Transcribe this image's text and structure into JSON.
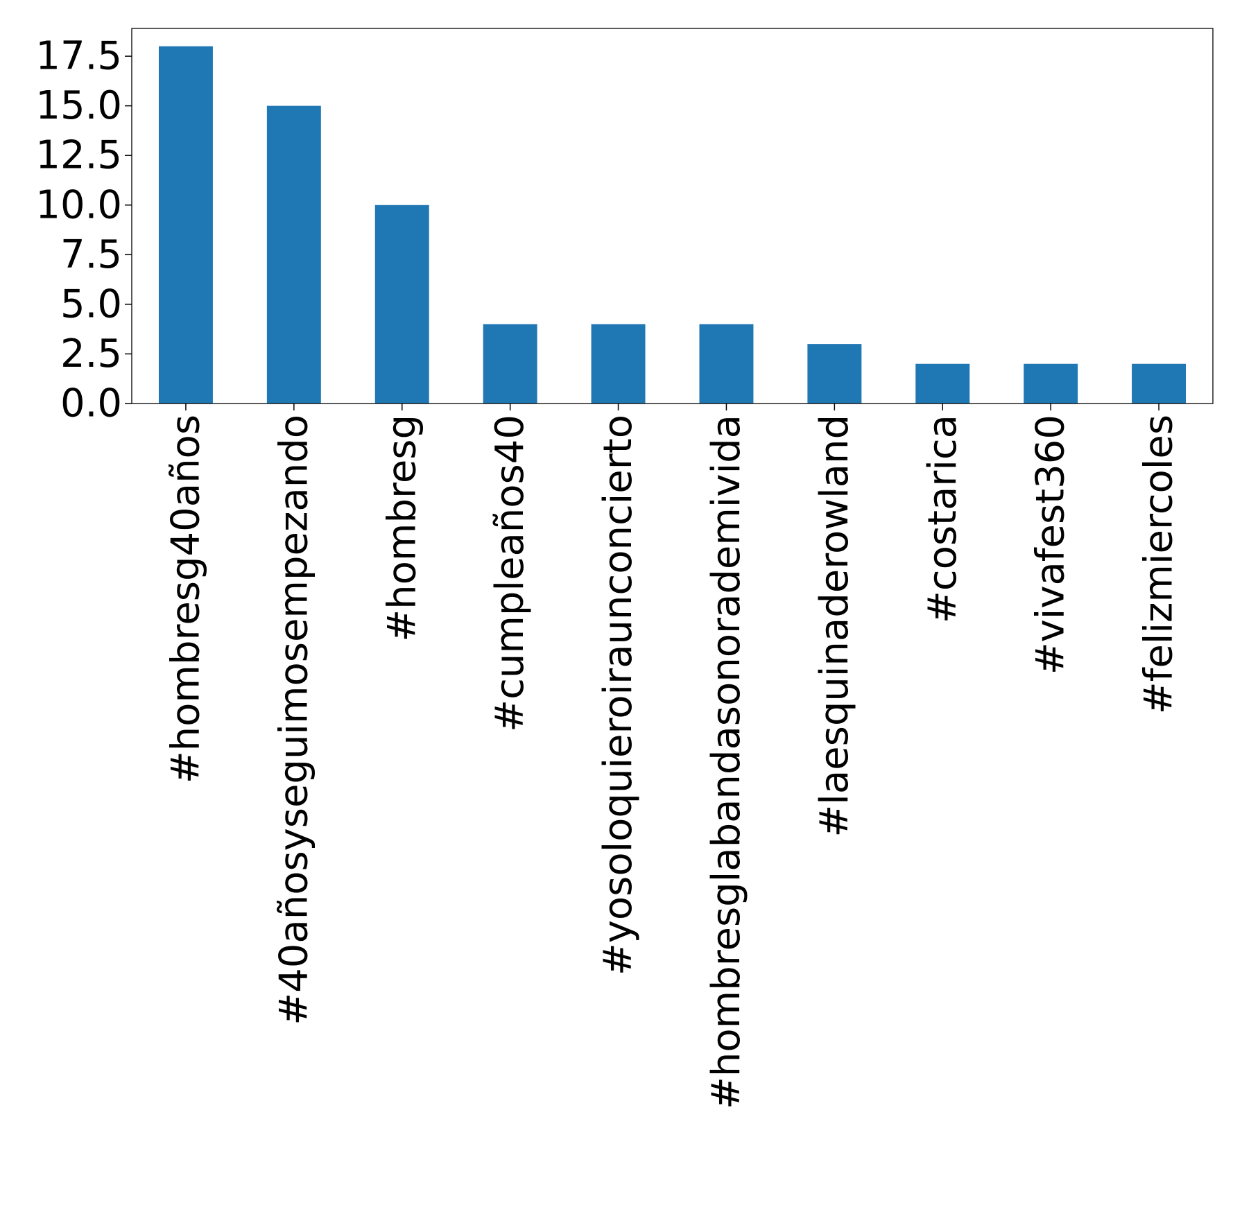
{
  "chart_data": {
    "type": "bar",
    "title": "",
    "xlabel": "",
    "ylabel": "",
    "categories": [
      "#hombresg40años",
      "#40añosyseguimosempezando",
      "#hombresg",
      "#cumpleaños40",
      "#yosoloquieroiraunconcierto",
      "#hombresglabandasonorademivida",
      "#laesquinaderowland",
      "#costarica",
      "#vivafest360",
      "#felizmiercoles"
    ],
    "values": [
      18,
      15,
      10,
      4,
      4,
      4,
      3,
      2,
      2,
      2
    ],
    "ylim": [
      0,
      18.9
    ],
    "yticks": [
      0.0,
      2.5,
      5.0,
      7.5,
      10.0,
      12.5,
      15.0,
      17.5
    ],
    "ytick_labels": [
      "0.0",
      "2.5",
      "5.0",
      "7.5",
      "10.0",
      "12.5",
      "15.0",
      "17.5"
    ],
    "bar_color": "#1f77b4",
    "grid": false,
    "legend": "none"
  }
}
